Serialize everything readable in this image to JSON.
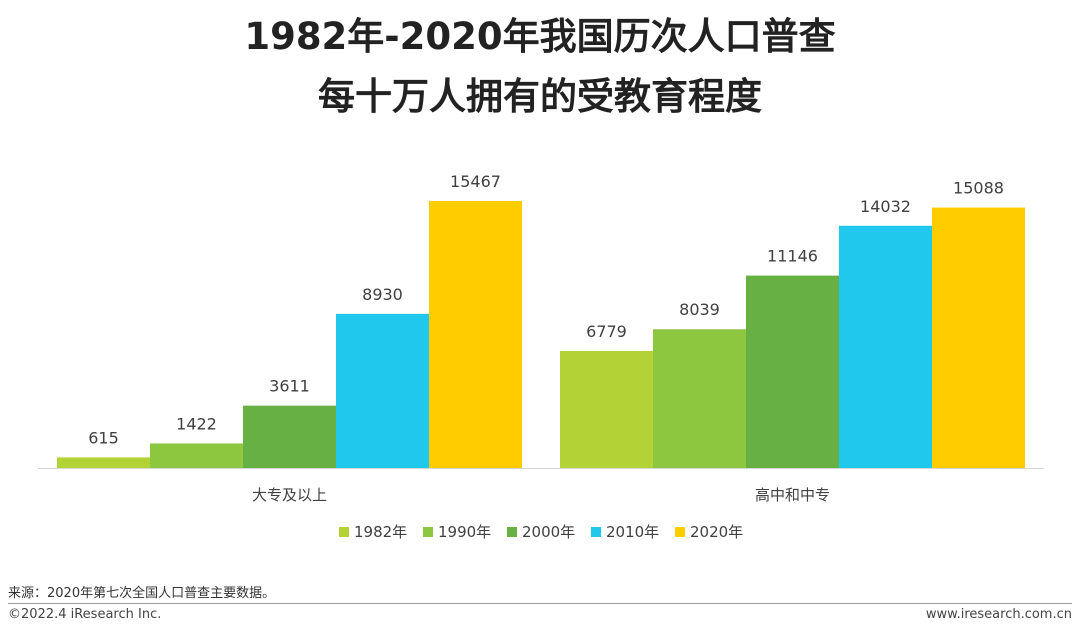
{
  "header": {
    "title_line1": "1982年-2020年我国历次人口普查",
    "title_line2": "每十万人拥有的受教育程度"
  },
  "chart_data": {
    "type": "bar",
    "categories": [
      "大专及以上",
      "高中和中专"
    ],
    "series": [
      {
        "name": "1982年",
        "values": [
          615,
          6779
        ],
        "color": "#B2D235"
      },
      {
        "name": "1990年",
        "values": [
          1422,
          8039
        ],
        "color": "#8DC63F"
      },
      {
        "name": "2000年",
        "values": [
          3611,
          11146
        ],
        "color": "#67B044"
      },
      {
        "name": "2010年",
        "values": [
          8930,
          14032
        ],
        "color": "#20C8EE"
      },
      {
        "name": "2020年",
        "values": [
          15467,
          15088
        ],
        "color": "#FFCC00"
      }
    ],
    "ylim": [
      0,
      15467
    ],
    "grid": false,
    "legend_position": "bottom"
  },
  "footer": {
    "source": "来源：2020年第七次全国人口普查主要数据。",
    "copyright": "©2022.4 iResearch Inc.",
    "website": "www.iresearch.com.cn"
  }
}
